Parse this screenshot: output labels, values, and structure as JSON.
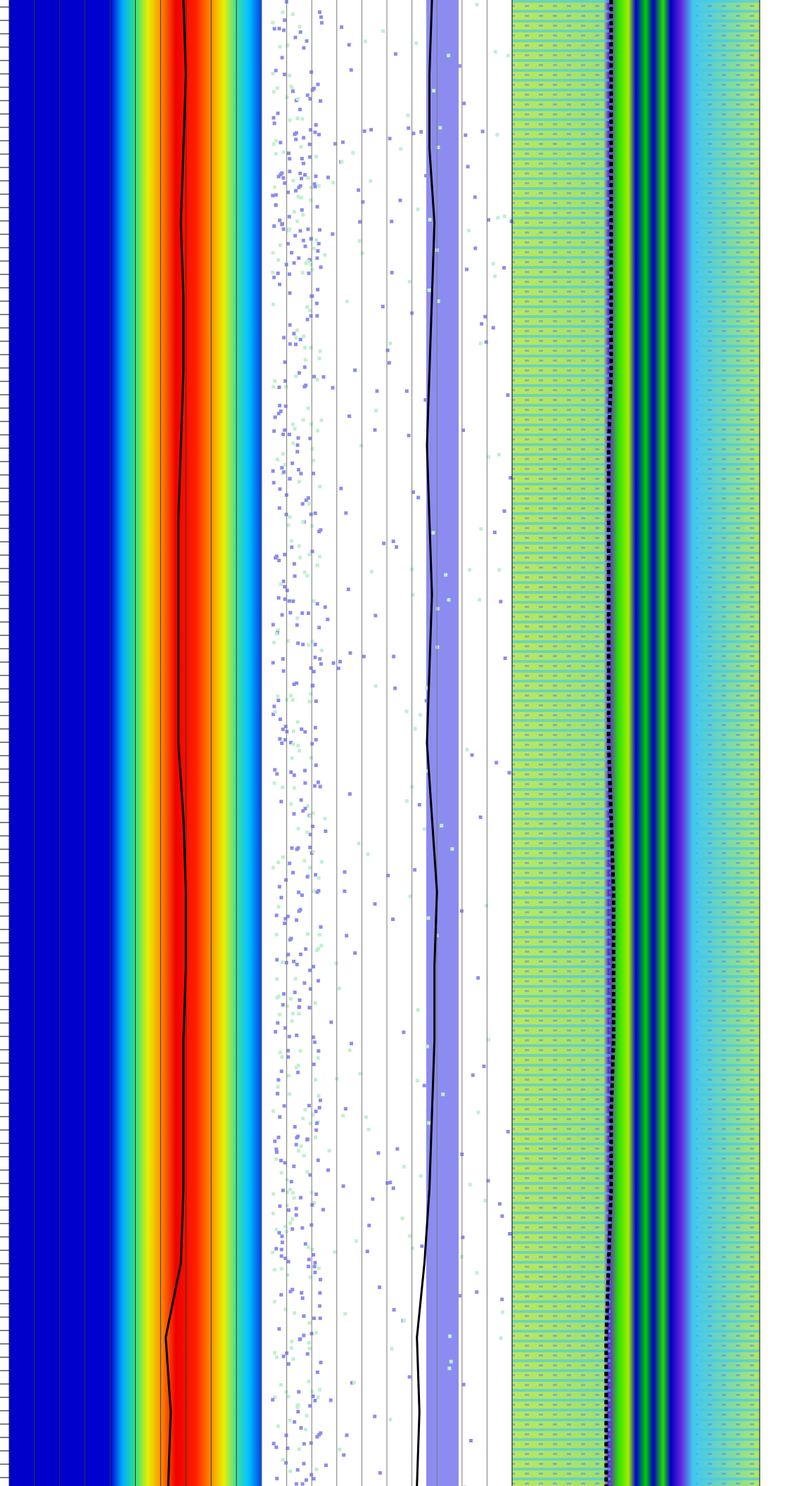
{
  "chart_data": [
    {
      "type": "log-track",
      "grid": true,
      "xlim": [
        0,
        10
      ],
      "xticks": [
        0,
        1,
        2,
        3,
        4,
        5,
        6,
        7,
        8,
        9,
        10
      ],
      "ylim": [
        0,
        100
      ],
      "y": [
        0,
        5,
        10,
        15,
        20,
        25,
        30,
        35,
        40,
        45,
        50,
        55,
        60,
        65,
        70,
        75,
        80,
        85,
        90,
        95,
        100
      ],
      "series": [
        {
          "color": "#000000",
          "dash": false,
          "values": [
            6.9,
            7.0,
            6.9,
            6.8,
            6.9,
            6.9,
            6.8,
            6.7,
            6.7,
            6.7,
            6.7,
            6.9,
            7.0,
            7.0,
            6.9,
            6.9,
            6.9,
            6.8,
            6.2,
            6.4,
            6.3
          ]
        }
      ]
    },
    {
      "type": "log-track",
      "grid": true,
      "xlim": [
        0,
        10
      ],
      "xticks": [
        0,
        1,
        2,
        3,
        4,
        5,
        6,
        7,
        8,
        9,
        10
      ],
      "ylim": [
        0,
        100
      ],
      "y": [
        0,
        5,
        10,
        15,
        20,
        25,
        30,
        35,
        40,
        45,
        50,
        55,
        60,
        65,
        70,
        75,
        80,
        85,
        90,
        95,
        100
      ],
      "series": [
        {
          "color": "#000000",
          "dash": false,
          "values": [
            6.8,
            6.7,
            6.7,
            6.9,
            6.8,
            6.7,
            6.6,
            6.7,
            6.8,
            6.7,
            6.6,
            6.8,
            7.0,
            6.9,
            6.9,
            6.8,
            6.7,
            6.5,
            6.2,
            6.3,
            6.2
          ]
        }
      ]
    },
    {
      "type": "log-track",
      "grid": false,
      "xlim": [
        0,
        10
      ],
      "ylim": [
        0,
        100
      ],
      "y": [
        0,
        5,
        10,
        15,
        20,
        25,
        30,
        35,
        40,
        45,
        50,
        55,
        60,
        65,
        70,
        75,
        80,
        85,
        90,
        95,
        100
      ],
      "series": [
        {
          "color": "#000000",
          "dash": true,
          "values": [
            4.0,
            4.0,
            4.0,
            4.0,
            4.0,
            4.0,
            3.9,
            3.9,
            3.9,
            3.9,
            3.9,
            4.0,
            4.1,
            4.1,
            4.1,
            4.0,
            4.0,
            3.9,
            3.8,
            3.8,
            3.8
          ]
        }
      ]
    }
  ]
}
